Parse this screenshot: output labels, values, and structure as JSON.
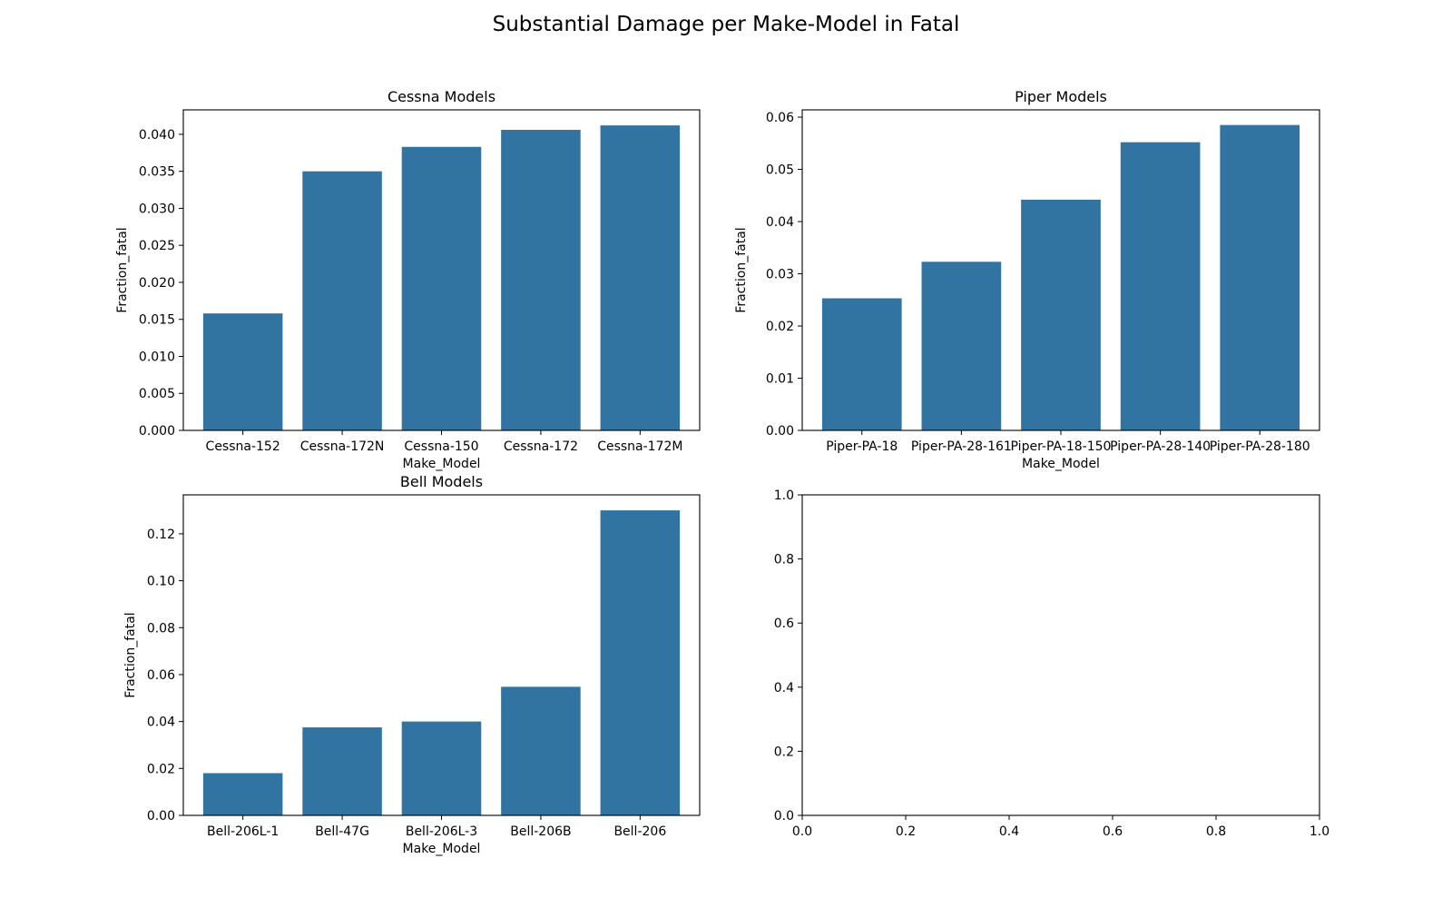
{
  "figure": {
    "suptitle": "Substantial Damage per Make-Model in Fatal"
  },
  "colors": {
    "bar": "#3274a1",
    "axis": "#000000",
    "background": "#ffffff"
  },
  "chart_data": [
    {
      "type": "bar",
      "title": "Cessna Models",
      "xlabel": "Make_Model",
      "ylabel": "Fraction_fatal",
      "categories": [
        "Cessna-152",
        "Cessna-172N",
        "Cessna-150",
        "Cessna-172",
        "Cessna-172M"
      ],
      "values": [
        0.0158,
        0.035,
        0.0383,
        0.0406,
        0.0412
      ],
      "ylim": [
        0,
        0.0433
      ],
      "yticks": [
        0.0,
        0.005,
        0.01,
        0.015,
        0.02,
        0.025,
        0.03,
        0.035,
        0.04
      ],
      "ytick_labels": [
        "0.000",
        "0.005",
        "0.010",
        "0.015",
        "0.020",
        "0.025",
        "0.030",
        "0.035",
        "0.040"
      ],
      "grid": false
    },
    {
      "type": "bar",
      "title": "Piper Models",
      "xlabel": "Make_Model",
      "ylabel": "Fraction_fatal",
      "categories": [
        "Piper-PA-18",
        "Piper-PA-28-161",
        "Piper-PA-18-150",
        "Piper-PA-28-140",
        "Piper-PA-28-180"
      ],
      "values": [
        0.0253,
        0.0323,
        0.0442,
        0.0552,
        0.0585
      ],
      "ylim": [
        0,
        0.0614
      ],
      "yticks": [
        0.0,
        0.01,
        0.02,
        0.03,
        0.04,
        0.05,
        0.06
      ],
      "ytick_labels": [
        "0.00",
        "0.01",
        "0.02",
        "0.03",
        "0.04",
        "0.05",
        "0.06"
      ],
      "grid": false
    },
    {
      "type": "bar",
      "title": "Bell Models",
      "xlabel": "Make_Model",
      "ylabel": "Fraction_fatal",
      "categories": [
        "Bell-206L-1",
        "Bell-47G",
        "Bell-206L-3",
        "Bell-206B",
        "Bell-206"
      ],
      "values": [
        0.018,
        0.0375,
        0.04,
        0.0548,
        0.13
      ],
      "ylim": [
        0,
        0.1366
      ],
      "yticks": [
        0.0,
        0.02,
        0.04,
        0.06,
        0.08,
        0.1,
        0.12
      ],
      "ytick_labels": [
        "0.00",
        "0.02",
        "0.04",
        "0.06",
        "0.08",
        "0.10",
        "0.12"
      ],
      "grid": false
    },
    {
      "type": "bar",
      "title": "",
      "xlabel": "",
      "ylabel": "",
      "categories": [],
      "values": [],
      "xlim": [
        0,
        1
      ],
      "ylim": [
        0,
        1
      ],
      "xticks": [
        0.0,
        0.2,
        0.4,
        0.6,
        0.8,
        1.0
      ],
      "xtick_labels": [
        "0.0",
        "0.2",
        "0.4",
        "0.6",
        "0.8",
        "1.0"
      ],
      "yticks": [
        0.0,
        0.2,
        0.4,
        0.6,
        0.8,
        1.0
      ],
      "ytick_labels": [
        "0.0",
        "0.2",
        "0.4",
        "0.6",
        "0.8",
        "1.0"
      ],
      "grid": false
    }
  ]
}
